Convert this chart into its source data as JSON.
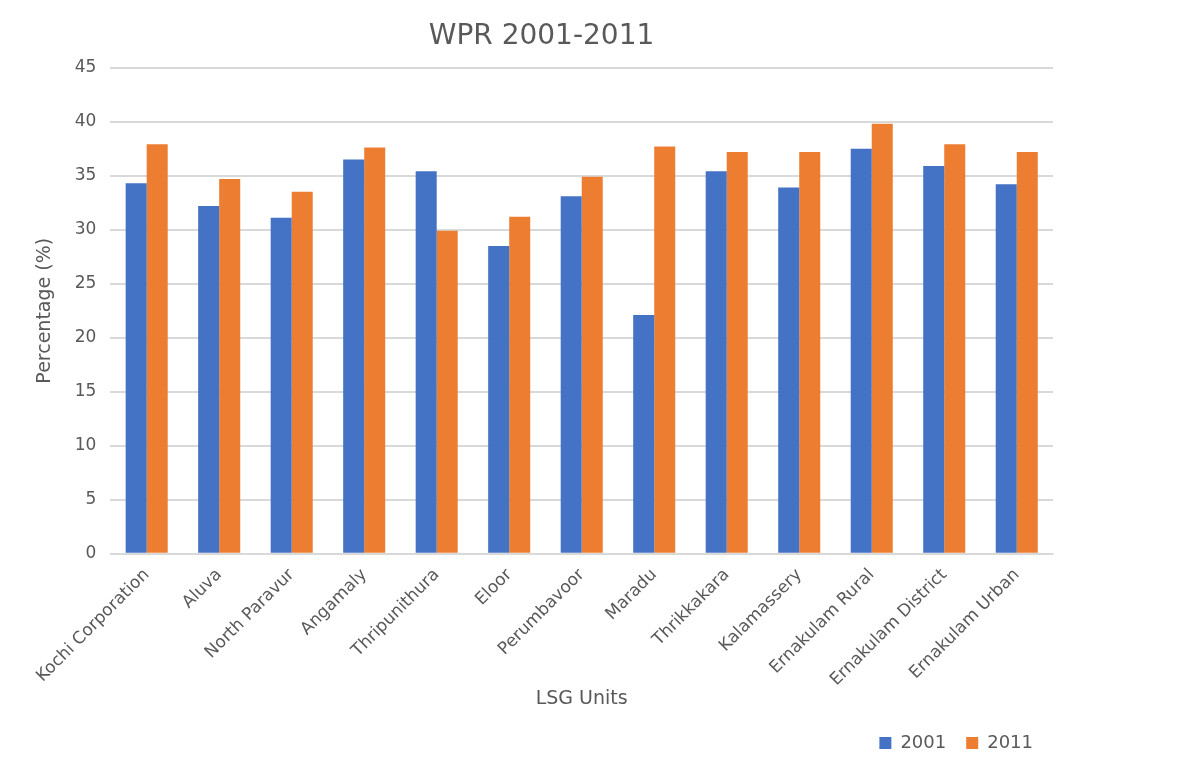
{
  "chart_data": {
    "type": "bar",
    "title": "WPR 2001-2011",
    "xlabel": "LSG Units",
    "ylabel": "Percentage (%)",
    "categories": [
      "Kochi Corporation",
      "Aluva",
      "North Paravur",
      "Angamaly",
      "Thripunithura",
      "Eloor",
      "Perumbavoor",
      "Maradu",
      "Thrikkakara",
      "Kalamassery",
      "Ernakulam Rural",
      "Ernakulam District",
      "Ernakulam Urban"
    ],
    "series": [
      {
        "name": "2001",
        "color": "#4472c4",
        "values": [
          34.3,
          32.2,
          31.1,
          36.5,
          35.4,
          28.5,
          33.1,
          22.1,
          35.4,
          33.9,
          37.5,
          35.9,
          34.2
        ]
      },
      {
        "name": "2011",
        "color": "#ed7d31",
        "values": [
          37.9,
          34.7,
          33.5,
          37.6,
          29.9,
          31.2,
          34.9,
          37.7,
          37.2,
          37.2,
          39.8,
          37.9,
          37.2
        ]
      }
    ],
    "ylim": [
      0,
      45
    ],
    "yticks": [
      0,
      5,
      10,
      15,
      20,
      25,
      30,
      35,
      40,
      45
    ],
    "grid": "y",
    "legend": "bottom right"
  }
}
